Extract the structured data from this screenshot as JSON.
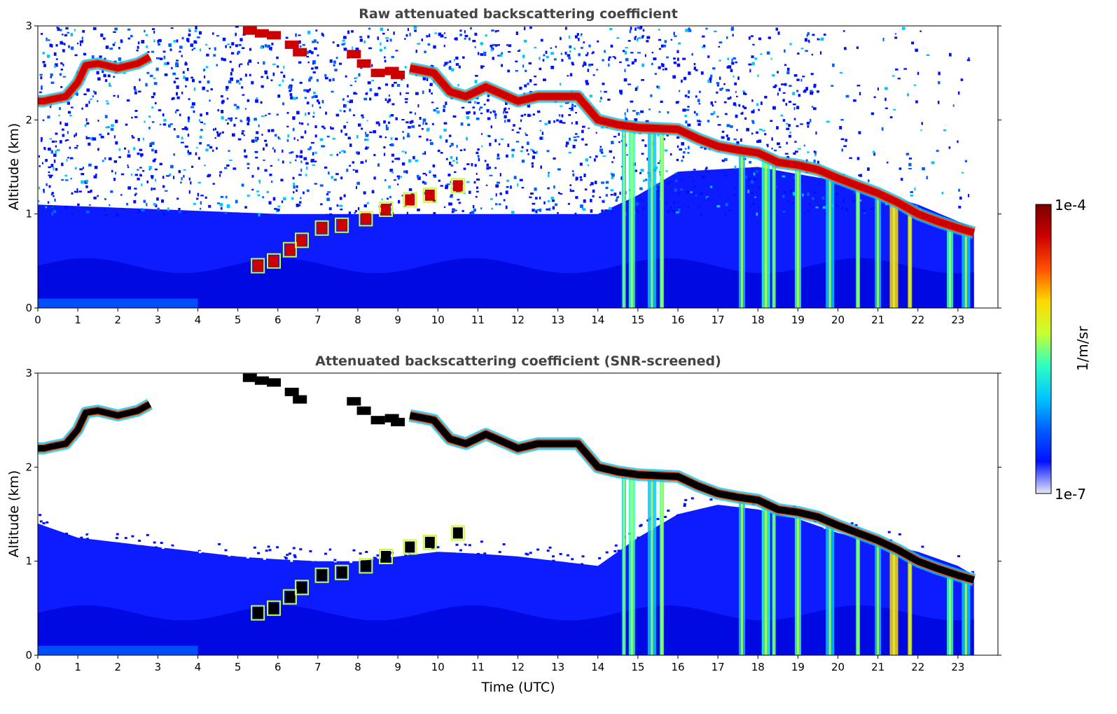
{
  "colors": {
    "colormap": [
      "#e6e8f5",
      "#0010ff",
      "#0060ff",
      "#00c8ff",
      "#30ffc0",
      "#c8ff30",
      "#ffd800",
      "#ff5000",
      "#cc0000",
      "#7a0000"
    ],
    "screened_saturation": "#000000",
    "title_color": "#444444"
  },
  "colorbar": {
    "label": "1/m/sr",
    "max_label": "1e-4",
    "min_label": "1e-7",
    "scale": "log"
  },
  "chart_data": [
    {
      "type": "heatmap",
      "title": "Raw attenuated backscattering coefficient",
      "xlabel": "",
      "ylabel": "Altitude (km)",
      "xlim": [
        0,
        24
      ],
      "ylim": [
        0,
        3
      ],
      "x_ticks": [
        "0",
        "1",
        "2",
        "3",
        "4",
        "5",
        "6",
        "7",
        "8",
        "9",
        "10",
        "11",
        "12",
        "13",
        "14",
        "15",
        "16",
        "17",
        "18",
        "19",
        "20",
        "21",
        "22",
        "23"
      ],
      "y_ticks": [
        "0",
        "1",
        "2",
        "3"
      ],
      "data_extent_time": [
        0,
        23.4
      ],
      "screened": false,
      "cloud_layer_top": {
        "time": [
          0,
          0.15,
          0.35,
          0.7,
          1.0,
          1.2,
          1.5,
          2.0,
          2.5,
          2.8
        ],
        "altitude": [
          2.2,
          2.2,
          2.22,
          2.25,
          2.4,
          2.58,
          2.6,
          2.55,
          2.6,
          2.67
        ]
      },
      "cloud_layer_main": {
        "time": [
          9.3,
          9.9,
          10.3,
          10.7,
          11.2,
          12.0,
          12.5,
          13.0,
          13.5,
          14.0,
          14.5,
          15.0,
          16.0,
          16.5,
          17.0,
          17.5,
          18.0,
          18.5,
          19.0,
          19.5,
          20.0,
          20.5,
          21.0,
          21.5,
          22.0,
          22.5,
          23.0,
          23.4
        ],
        "altitude": [
          2.55,
          2.5,
          2.3,
          2.25,
          2.35,
          2.2,
          2.25,
          2.25,
          2.25,
          2.0,
          1.95,
          1.92,
          1.9,
          1.8,
          1.72,
          1.68,
          1.65,
          1.55,
          1.52,
          1.47,
          1.38,
          1.3,
          1.22,
          1.12,
          1.0,
          0.92,
          0.85,
          0.8
        ]
      },
      "cloud_fragments_upper": {
        "time": [
          5.3,
          5.6,
          5.9,
          6.35,
          6.55,
          7.9,
          8.15,
          8.5,
          8.85,
          9.0
        ],
        "altitude": [
          2.95,
          2.92,
          2.9,
          2.8,
          2.72,
          2.7,
          2.6,
          2.5,
          2.52,
          2.48
        ]
      },
      "cloud_fragments_low": {
        "time": [
          5.5,
          5.9,
          6.3,
          6.6,
          7.1,
          7.6,
          8.2,
          8.7,
          9.3,
          9.8,
          10.5
        ],
        "altitude": [
          0.45,
          0.5,
          0.62,
          0.72,
          0.85,
          0.88,
          0.95,
          1.05,
          1.15,
          1.2,
          1.3
        ]
      },
      "precipitation_streaks_time": [
        14.65,
        14.85,
        15.35,
        15.6,
        17.6,
        18.2,
        18.4,
        19.0,
        19.8,
        20.5,
        21.0,
        21.4,
        21.8,
        22.8,
        23.2
      ],
      "background_noise_above_km": 1.0
    },
    {
      "type": "heatmap",
      "title": "Attenuated backscattering coefficient (SNR-screened)",
      "xlabel": "Time (UTC)",
      "ylabel": "Altitude (km)",
      "xlim": [
        0,
        24
      ],
      "ylim": [
        0,
        3
      ],
      "x_ticks": [
        "0",
        "1",
        "2",
        "3",
        "4",
        "5",
        "6",
        "7",
        "8",
        "9",
        "10",
        "11",
        "12",
        "13",
        "14",
        "15",
        "16",
        "17",
        "18",
        "19",
        "20",
        "21",
        "22",
        "23"
      ],
      "y_ticks": [
        "0",
        "1",
        "2",
        "3"
      ],
      "data_extent_time": [
        0,
        23.4
      ],
      "screened": true,
      "boundary_layer_top": {
        "time": [
          0,
          1,
          2,
          3,
          4,
          5,
          6,
          7,
          8,
          9,
          10,
          11,
          12,
          13,
          14,
          15,
          16,
          17,
          18,
          19,
          20,
          21,
          22,
          23,
          23.4
        ],
        "altitude": [
          1.4,
          1.25,
          1.2,
          1.15,
          1.1,
          1.05,
          1.02,
          1.0,
          1.0,
          1.05,
          1.1,
          1.08,
          1.05,
          1.0,
          0.95,
          1.25,
          1.5,
          1.6,
          1.55,
          1.45,
          1.3,
          1.2,
          1.1,
          0.95,
          0.85
        ]
      }
    }
  ]
}
